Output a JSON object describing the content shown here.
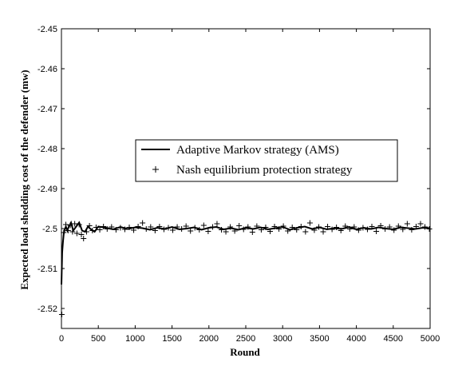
{
  "chart_data": {
    "type": "line",
    "title": "",
    "xlabel": "Round",
    "ylabel": "Expected load shedding cost of the defender (mw)",
    "xlim": [
      0,
      5000
    ],
    "ylim": [
      -2.525,
      -2.45
    ],
    "xticks": [
      0,
      500,
      1000,
      1500,
      2000,
      2500,
      3000,
      3500,
      4000,
      4500,
      5000
    ],
    "yticks": [
      -2.52,
      -2.51,
      -2.5,
      -2.49,
      -2.48,
      -2.47,
      -2.46,
      -2.45
    ],
    "xtick_labels": [
      "0",
      "500",
      "1000",
      "1500",
      "2000",
      "2500",
      "3000",
      "3500",
      "4000",
      "4500",
      "5000"
    ],
    "ytick_labels": [
      "-2.52",
      "-2.51",
      "-2.5",
      "-2.49",
      "-2.48",
      "-2.47",
      "-2.46",
      "-2.45"
    ],
    "grid": false,
    "legend_position": "center-right",
    "series": [
      {
        "name": "Adaptive Markov strategy (AMS)",
        "style": "line",
        "color": "#000000",
        "x": [
          0,
          10,
          20,
          30,
          40,
          60,
          80,
          100,
          130,
          160,
          200,
          240,
          280,
          320,
          360,
          400,
          450,
          500,
          600,
          700,
          800,
          900,
          1000,
          1100,
          1200,
          1300,
          1400,
          1500,
          1600,
          1700,
          1800,
          1900,
          2000,
          2100,
          2200,
          2300,
          2400,
          2500,
          2600,
          2700,
          2800,
          2900,
          3000,
          3100,
          3200,
          3300,
          3400,
          3500,
          3600,
          3700,
          3800,
          3900,
          4000,
          4100,
          4200,
          4300,
          4400,
          4500,
          4600,
          4700,
          4800,
          4900,
          5000
        ],
        "y": [
          -2.514,
          -2.506,
          -2.5035,
          -2.5015,
          -2.5005,
          -2.4995,
          -2.5005,
          -2.4995,
          -2.4985,
          -2.5005,
          -2.4995,
          -2.4985,
          -2.5005,
          -2.5008,
          -2.4995,
          -2.5002,
          -2.5008,
          -2.4995,
          -2.4998,
          -2.5002,
          -2.4996,
          -2.5001,
          -2.4997,
          -2.4999,
          -2.5003,
          -2.4998,
          -2.5001,
          -2.4996,
          -2.5002,
          -2.5,
          -2.4997,
          -2.5003,
          -2.4998,
          -2.4996,
          -2.5002,
          -2.4999,
          -2.5003,
          -2.4998,
          -2.5001,
          -2.4997,
          -2.5002,
          -2.4999,
          -2.4996,
          -2.5003,
          -2.4998,
          -2.4995,
          -2.5001,
          -2.4997,
          -2.5002,
          -2.4999,
          -2.5001,
          -2.4996,
          -2.5002,
          -2.4998,
          -2.5001,
          -2.4997,
          -2.5,
          -2.5002,
          -2.4997,
          -2.4999,
          -2.5001,
          -2.4998,
          -2.4999
        ]
      },
      {
        "name": "Nash equilibrium protection strategy",
        "style": "plus-markers",
        "color": "#000000",
        "x": [
          5,
          30,
          60,
          90,
          120,
          150,
          180,
          210,
          240,
          270,
          300,
          340,
          380,
          420,
          470,
          520,
          570,
          620,
          680,
          740,
          800,
          860,
          920,
          980,
          1040,
          1100,
          1150,
          1210,
          1270,
          1330,
          1390,
          1450,
          1510,
          1570,
          1630,
          1690,
          1750,
          1810,
          1870,
          1930,
          1990,
          2050,
          2110,
          2170,
          2230,
          2290,
          2350,
          2410,
          2470,
          2530,
          2590,
          2650,
          2710,
          2770,
          2830,
          2890,
          2950,
          3010,
          3070,
          3130,
          3190,
          3250,
          3310,
          3370,
          3430,
          3490,
          3550,
          3610,
          3670,
          3730,
          3790,
          3850,
          3910,
          3970,
          4030,
          4090,
          4150,
          4210,
          4270,
          4330,
          4390,
          4450,
          4510,
          4570,
          4630,
          4690,
          4750,
          4810,
          4870,
          4930,
          4990
        ],
        "y": [
          -2.5215,
          -2.501,
          -2.499,
          -2.5005,
          -2.4992,
          -2.5008,
          -2.4988,
          -2.5012,
          -2.499,
          -2.5015,
          -2.5025,
          -2.5008,
          -2.4993,
          -2.5005,
          -2.4997,
          -2.5003,
          -2.4995,
          -2.5001,
          -2.4996,
          -2.5003,
          -2.4998,
          -2.5002,
          -2.4997,
          -2.5004,
          -2.4995,
          -2.4986,
          -2.5001,
          -2.4996,
          -2.5005,
          -2.4995,
          -2.5002,
          -2.4998,
          -2.5004,
          -2.4996,
          -2.5001,
          -2.4994,
          -2.5006,
          -2.4998,
          -2.5003,
          -2.4992,
          -2.5007,
          -2.4996,
          -2.4988,
          -2.5003,
          -2.5008,
          -2.4996,
          -2.5006,
          -2.4993,
          -2.5002,
          -2.4996,
          -2.5009,
          -2.4994,
          -2.5003,
          -2.4997,
          -2.5007,
          -2.4995,
          -2.5001,
          -2.4994,
          -2.5006,
          -2.4997,
          -2.5003,
          -2.4995,
          -2.5008,
          -2.4986,
          -2.5004,
          -2.4996,
          -2.5008,
          -2.4995,
          -2.5002,
          -2.4997,
          -2.5005,
          -2.4994,
          -2.5001,
          -2.4996,
          -2.5004,
          -2.4998,
          -2.5002,
          -2.4995,
          -2.5007,
          -2.4993,
          -2.5001,
          -2.4996,
          -2.5004,
          -2.4994,
          -2.5002,
          -2.4988,
          -2.5003,
          -2.4995,
          -2.4988,
          -2.4996,
          -2.5001
        ]
      }
    ]
  }
}
